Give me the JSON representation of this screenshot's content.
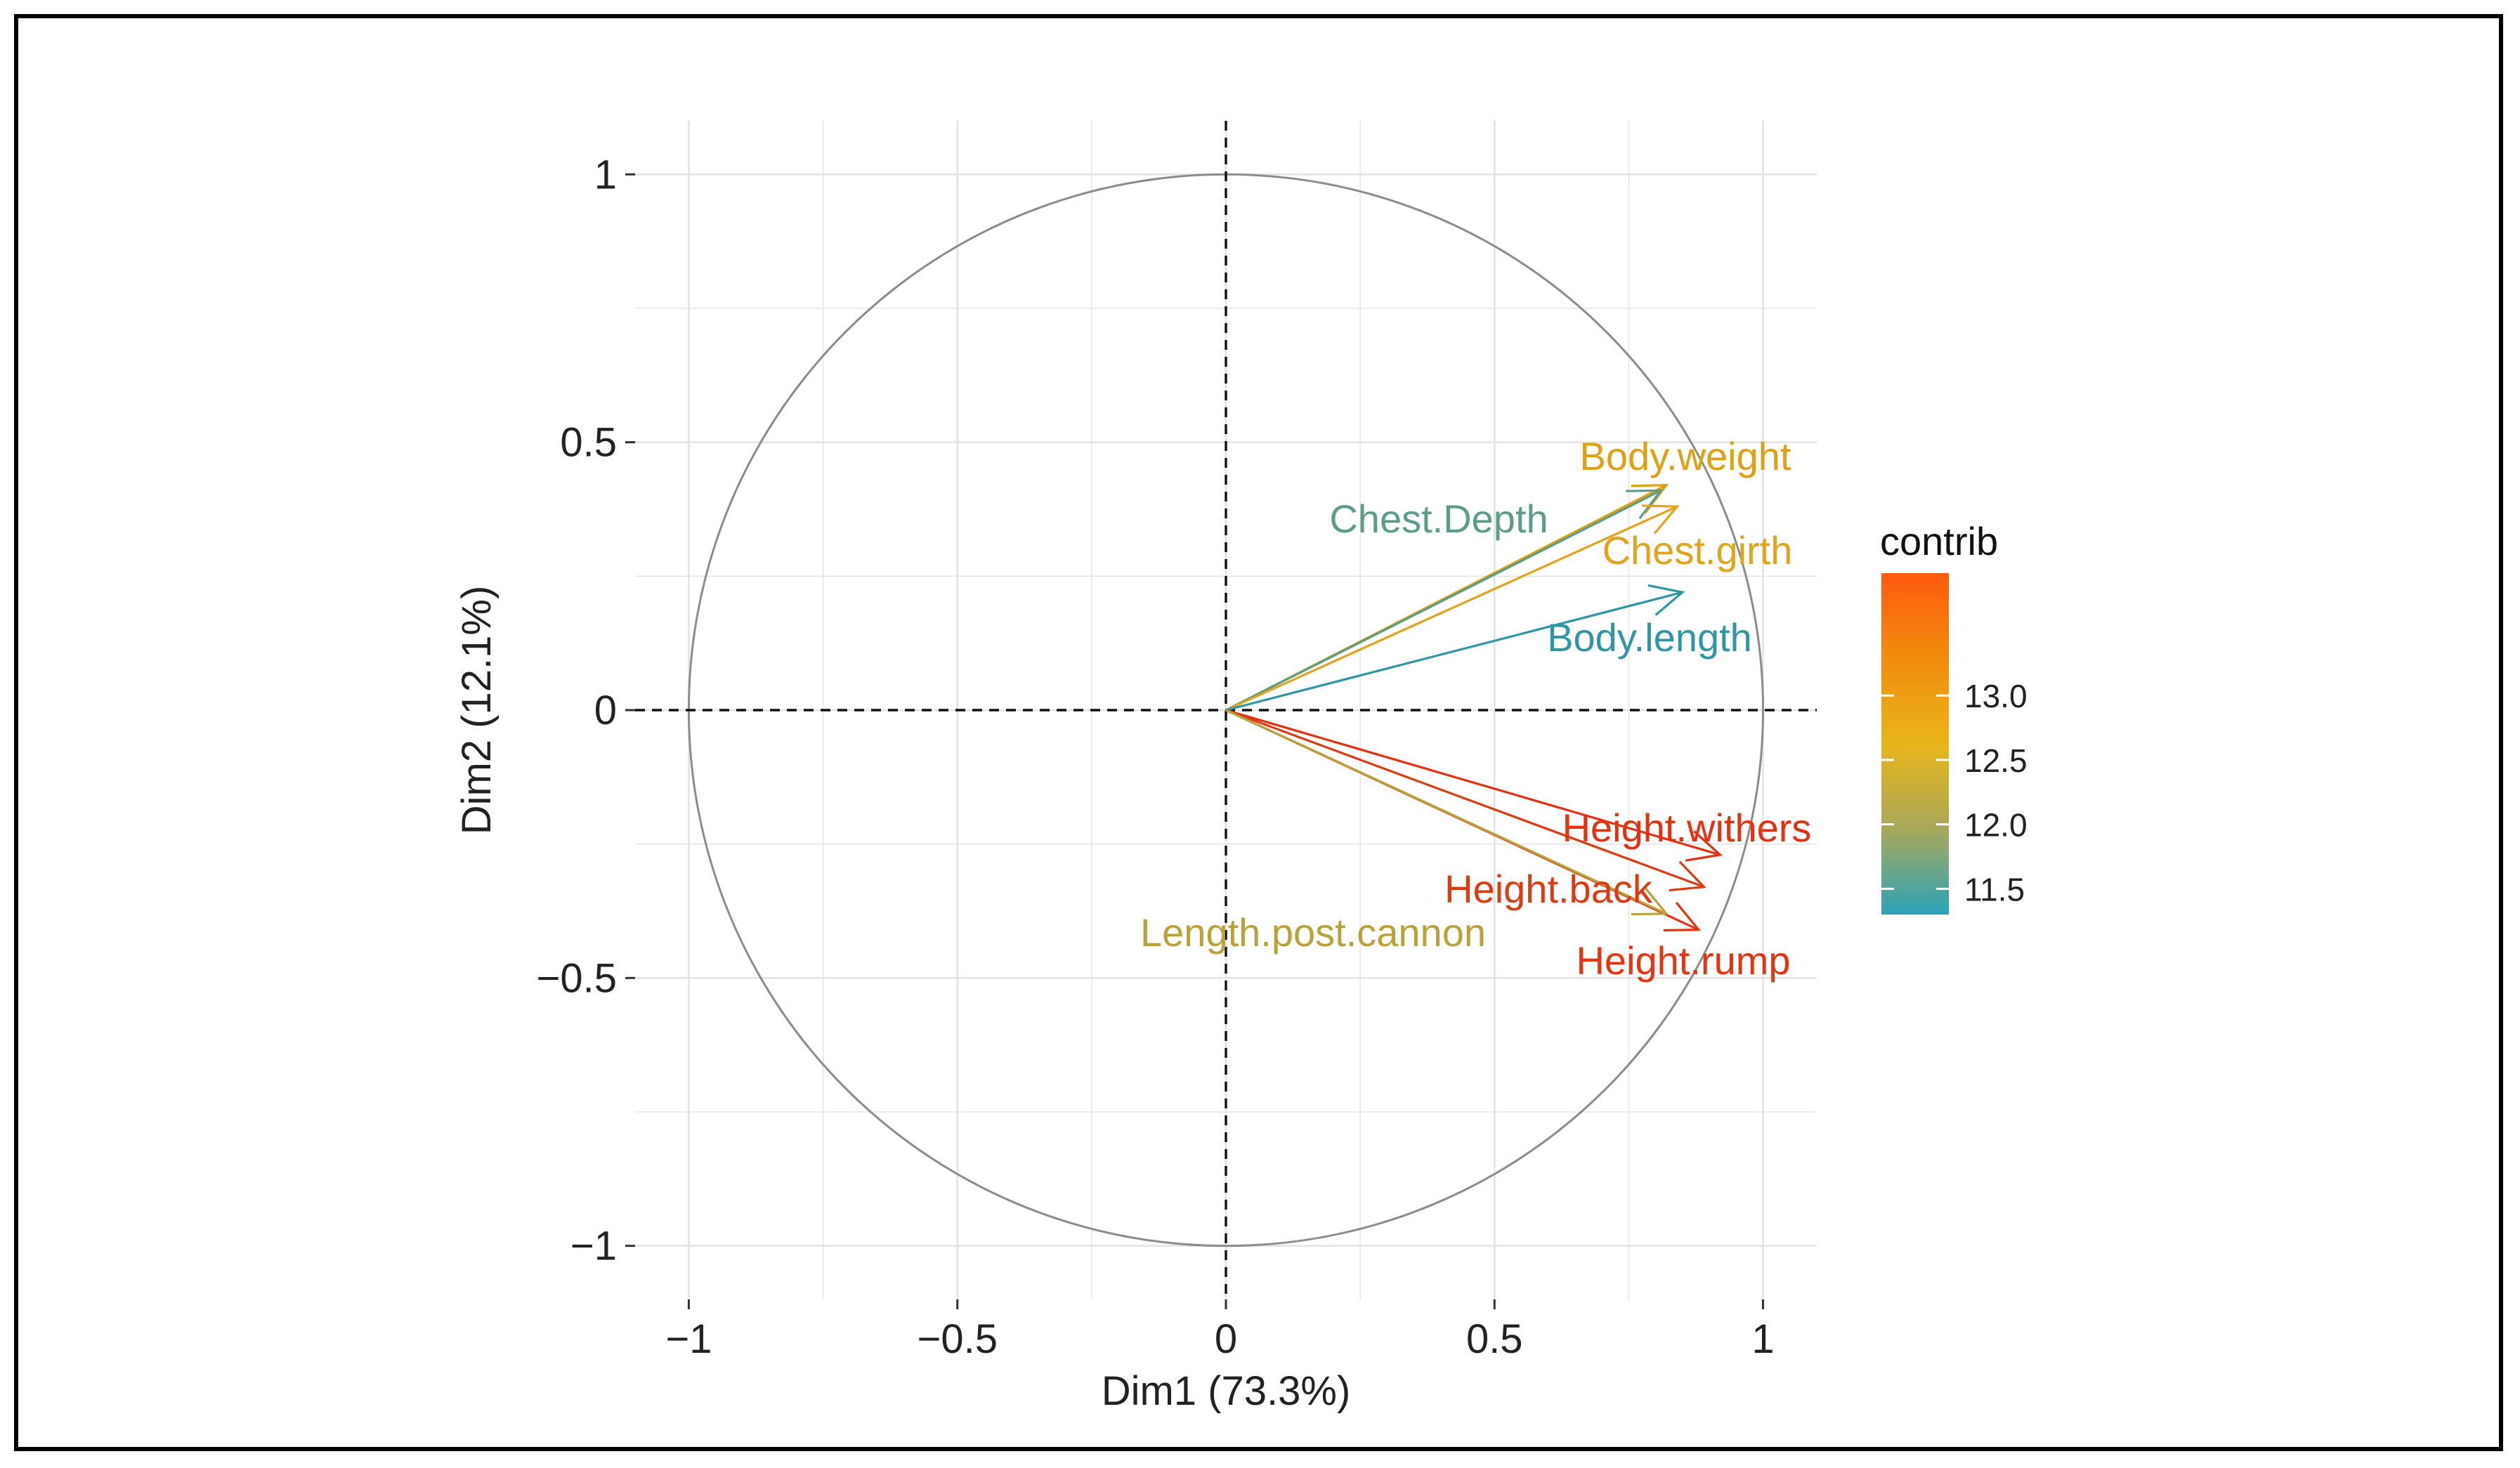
{
  "chart_data": {
    "type": "pca_variable_correlation_circle",
    "xlabel": "Dim1 (73.3%)",
    "ylabel": "Dim2 (12.1%)",
    "xlim": [
      -1.1,
      1.1
    ],
    "ylim": [
      -1.1,
      1.1
    ],
    "x_ticks": [
      -1,
      -0.5,
      0,
      0.5,
      1
    ],
    "x_tick_labels": [
      "−1",
      "−0.5",
      "0",
      "0.5",
      "1"
    ],
    "y_ticks": [
      -1,
      -0.5,
      0,
      0.5,
      1
    ],
    "y_tick_labels": [
      "−1",
      "−0.5",
      "0",
      "0.5",
      "1"
    ],
    "grid": true,
    "unit_circle": true,
    "variables": [
      {
        "name": "Body.weight",
        "x": 0.82,
        "y": 0.42,
        "contrib": 12.55,
        "color": "#E0A010"
      },
      {
        "name": "Chest.Depth",
        "x": 0.81,
        "y": 0.41,
        "contrib": 11.9,
        "color": "#5A9E88"
      },
      {
        "name": "Chest.girth",
        "x": 0.84,
        "y": 0.38,
        "contrib": 12.6,
        "color": "#E3A31A"
      },
      {
        "name": "Body.length",
        "x": 0.85,
        "y": 0.22,
        "contrib": 11.4,
        "color": "#2F96A6"
      },
      {
        "name": "Height.withers",
        "x": 0.92,
        "y": -0.27,
        "contrib": 13.9,
        "color": "#E63010"
      },
      {
        "name": "Height.back",
        "x": 0.89,
        "y": -0.33,
        "contrib": 13.7,
        "color": "#E03A12"
      },
      {
        "name": "Height.rump",
        "x": 0.88,
        "y": -0.41,
        "contrib": 13.6,
        "color": "#E8340E"
      },
      {
        "name": "Length.post.cannon",
        "x": 0.82,
        "y": -0.38,
        "contrib": 12.2,
        "color": "#B9A238"
      }
    ],
    "legend": {
      "title": "contrib",
      "position": "right",
      "min": 11.3,
      "max": 13.95,
      "ticks": [
        11.5,
        12.0,
        12.5,
        13.0
      ],
      "tick_labels": [
        "11.5",
        "12.0",
        "12.5",
        "13.0"
      ],
      "colors": [
        "#2BA3B8",
        "#A8A85A",
        "#E9B51A",
        "#F08C0E",
        "#FF5A0E"
      ]
    }
  }
}
